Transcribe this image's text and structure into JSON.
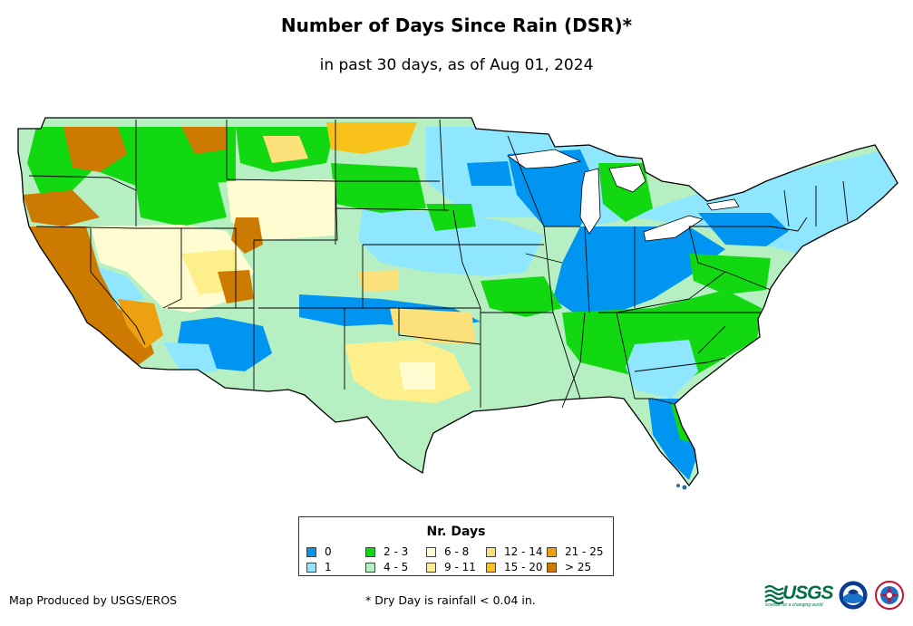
{
  "title": "Number of Days Since Rain (DSR)*",
  "subtitle": "in past 30 days, as of Aug 01, 2024",
  "legend": {
    "title": "Nr. Days",
    "items": [
      {
        "label": "0",
        "color": "#0095f0"
      },
      {
        "label": "1",
        "color": "#8ee6ff"
      },
      {
        "label": "2 - 3",
        "color": "#12d812"
      },
      {
        "label": "4 - 5",
        "color": "#b6f0c2"
      },
      {
        "label": "6 - 8",
        "color": "#fefcd0"
      },
      {
        "label": "9 - 11",
        "color": "#fdf08c"
      },
      {
        "label": "12 - 14",
        "color": "#fce07a"
      },
      {
        "label": "15 - 20",
        "color": "#f9c21a"
      },
      {
        "label": "21 - 25",
        "color": "#eda010"
      },
      {
        "label": "> 25",
        "color": "#cc7a00"
      }
    ]
  },
  "footer": {
    "producer": "Map Produced by USGS/EROS",
    "footnote": "* Dry Day is rainfall < 0.04 in."
  },
  "logos": {
    "usgs": {
      "name": "usgs-logo",
      "text": "USGS",
      "tagline": "science for a changing world"
    },
    "noaa": {
      "name": "noaa-seal"
    },
    "nws": {
      "name": "national-weather-service-seal"
    }
  }
}
